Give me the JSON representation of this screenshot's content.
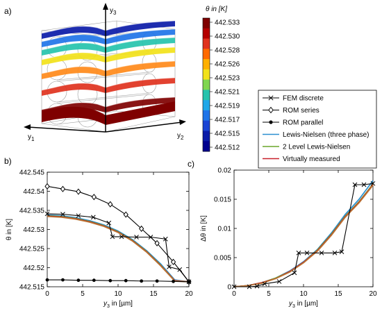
{
  "panel_labels": {
    "a": "a)",
    "b": "b)",
    "c": "c)"
  },
  "cube": {
    "axis_labels": {
      "vertical": "y",
      "vertical_sub": "3",
      "left": "y",
      "left_sub": "1",
      "right": "y",
      "right_sub": "2"
    },
    "layer_colors": [
      "#7f0000",
      "#e0321e",
      "#ff8a1a",
      "#f2e21a",
      "#26c3ad",
      "#1f74e8",
      "#0b1ba8"
    ]
  },
  "colorbar": {
    "title": "θ in [K]",
    "labels": [
      "442.533",
      "442.530",
      "442.528",
      "442.526",
      "442.523",
      "442.521",
      "442.519",
      "442.517",
      "442.515",
      "442.512"
    ],
    "colors": [
      "#7f0000",
      "#b40000",
      "#e0321e",
      "#ff6a00",
      "#ffb000",
      "#f2e21a",
      "#7fd650",
      "#26c3ad",
      "#1fa7e8",
      "#1f74e8",
      "#1a44d4",
      "#0b1ba8",
      "#00008f"
    ]
  },
  "legend": [
    {
      "label": "FEM discrete",
      "color": "#000000",
      "marker": "x"
    },
    {
      "label": "ROM series",
      "color": "#000000",
      "marker": "diamond"
    },
    {
      "label": "ROM parallel",
      "color": "#000000",
      "marker": "dot"
    },
    {
      "label": "Lewis-Nielsen (three phase)",
      "color": "#2a8fd0",
      "marker": "none"
    },
    {
      "label": "2 Level Lewis-Nielsen",
      "color": "#6aa62a",
      "marker": "none"
    },
    {
      "label": "Virtually measured",
      "color": "#c8202a",
      "marker": "none"
    }
  ],
  "chart_data": [
    {
      "type": "line",
      "xlabel": "y",
      "xlabel_sub": "3",
      "xlabel_unit": " in [µm]",
      "ylabel": "θ in [K]",
      "xlim": [
        0,
        20
      ],
      "ylim": [
        442.515,
        442.545
      ],
      "xticks": [
        0,
        5,
        10,
        15,
        20
      ],
      "yticks": [
        442.515,
        442.52,
        442.525,
        442.53,
        442.535,
        442.54,
        442.545
      ],
      "ytick_labels": [
        "442.515",
        "442.52",
        "442.525",
        "442.53",
        "442.535",
        "442.54",
        "442.545"
      ],
      "series": [
        {
          "name": "FEM discrete",
          "color": "#000000",
          "marker": "x",
          "x": [
            0,
            2.2,
            4.4,
            6.5,
            8.7,
            9.2,
            10.5,
            12.6,
            14.6,
            16.7,
            17.2,
            18.7,
            20
          ],
          "y": [
            442.5341,
            442.534,
            442.5336,
            442.5332,
            442.5317,
            442.5281,
            442.5281,
            442.528,
            442.528,
            442.5275,
            442.5202,
            442.5195,
            442.5163
          ]
        },
        {
          "name": "ROM series",
          "color": "#000000",
          "marker": "diamond",
          "x": [
            0,
            2.2,
            4.4,
            6.6,
            8.9,
            11.1,
            13.3,
            15.5,
            17.8,
            20
          ],
          "y": [
            442.5413,
            442.5406,
            442.5399,
            442.5385,
            442.5366,
            442.5339,
            442.5302,
            442.5264,
            442.5215,
            442.5163
          ]
        },
        {
          "name": "ROM parallel",
          "color": "#000000",
          "marker": "dot",
          "x": [
            0,
            2.2,
            4.4,
            6.6,
            8.9,
            11.1,
            13.3,
            15.5,
            17.8,
            20
          ],
          "y": [
            442.5168,
            442.5168,
            442.5167,
            442.5167,
            442.5166,
            442.5166,
            442.5165,
            442.5165,
            442.5164,
            442.5163
          ]
        },
        {
          "name": "Lewis-Nielsen (three phase)",
          "color": "#2a8fd0",
          "marker": "none",
          "x": [
            0,
            2,
            4,
            6,
            8,
            10,
            12,
            14,
            16,
            18,
            20
          ],
          "y": [
            442.5338,
            442.5336,
            442.5331,
            442.5323,
            442.5312,
            442.5296,
            442.5274,
            442.5245,
            442.521,
            442.5168,
            442.5163
          ]
        },
        {
          "name": "2 Level Lewis-Nielsen",
          "color": "#6aa62a",
          "marker": "none",
          "x": [
            0,
            2,
            4,
            6,
            8,
            10,
            12,
            14,
            16,
            18,
            20
          ],
          "y": [
            442.5336,
            442.5334,
            442.5329,
            442.5321,
            442.531,
            442.5294,
            442.5272,
            442.5243,
            442.5207,
            442.5166,
            442.5163
          ]
        },
        {
          "name": "Virtually measured",
          "color": "#c8202a",
          "marker": "none",
          "x": [
            0,
            2,
            4,
            6,
            8,
            10,
            12,
            14,
            16,
            18,
            20
          ],
          "y": [
            442.5335,
            442.5333,
            442.5328,
            442.532,
            442.5309,
            442.5293,
            442.5271,
            442.5242,
            442.5206,
            442.5166,
            442.5163
          ]
        },
        {
          "name": "Orange (unlabeled)",
          "color": "#b87333",
          "marker": "none",
          "x": [
            0,
            2,
            4,
            6,
            8,
            10,
            12,
            14,
            16,
            18,
            20
          ],
          "y": [
            442.5334,
            442.5332,
            442.5327,
            442.5319,
            442.5308,
            442.5292,
            442.527,
            442.5241,
            442.5205,
            442.5165,
            442.5163
          ]
        }
      ]
    },
    {
      "type": "line",
      "xlabel": "y",
      "xlabel_sub": "3",
      "xlabel_unit": " in [µm]",
      "ylabel": "Δθ in [K]",
      "xlim": [
        0,
        20
      ],
      "ylim": [
        0,
        0.02
      ],
      "xticks": [
        0,
        5,
        10,
        15,
        20
      ],
      "yticks": [
        0,
        0.005,
        0.01,
        0.015,
        0.02
      ],
      "ytick_labels": [
        "0",
        "0.005",
        "0.01",
        "0.015",
        "0.02"
      ],
      "series": [
        {
          "name": "FEM discrete",
          "color": "#000000",
          "marker": "x",
          "x": [
            0,
            2.2,
            3.3,
            4.4,
            6.5,
            8.7,
            9.3,
            10.5,
            12.6,
            14.5,
            15.5,
            17.4,
            18.7,
            20
          ],
          "y": [
            0,
            0,
            0.0001,
            0.0005,
            0.0009,
            0.0024,
            0.0058,
            0.0058,
            0.0058,
            0.0058,
            0.006,
            0.0175,
            0.0175,
            0.0177
          ]
        },
        {
          "name": "Lewis-Nielsen (three phase)",
          "color": "#2a8fd0",
          "marker": "none",
          "x": [
            0,
            2,
            4,
            6,
            8,
            10,
            12,
            14,
            16,
            18,
            20
          ],
          "y": [
            0,
            0.0002,
            0.0007,
            0.0015,
            0.0027,
            0.0043,
            0.0064,
            0.0092,
            0.0124,
            0.015,
            0.0182
          ]
        },
        {
          "name": "2 Level Lewis-Nielsen",
          "color": "#6aa62a",
          "marker": "none",
          "x": [
            0,
            2,
            4,
            6,
            8,
            10,
            12,
            14,
            16,
            18,
            20
          ],
          "y": [
            0,
            0.0002,
            0.0007,
            0.0015,
            0.0026,
            0.0042,
            0.0063,
            0.009,
            0.0121,
            0.0146,
            0.0176
          ]
        },
        {
          "name": "Virtually measured",
          "color": "#c8202a",
          "marker": "none",
          "x": [
            0,
            2,
            4,
            6,
            8,
            10,
            12,
            14,
            16,
            18,
            20
          ],
          "y": [
            0,
            0.0002,
            0.0007,
            0.0014,
            0.0026,
            0.0042,
            0.0062,
            0.0089,
            0.012,
            0.0145,
            0.0175
          ]
        },
        {
          "name": "Orange (unlabeled)",
          "color": "#b87333",
          "marker": "none",
          "x": [
            0,
            2,
            4,
            6,
            8,
            10,
            12,
            14,
            16,
            18,
            20
          ],
          "y": [
            0,
            0.0002,
            0.0006,
            0.0014,
            0.0025,
            0.0041,
            0.0061,
            0.0088,
            0.0119,
            0.0144,
            0.0174
          ]
        }
      ]
    }
  ]
}
